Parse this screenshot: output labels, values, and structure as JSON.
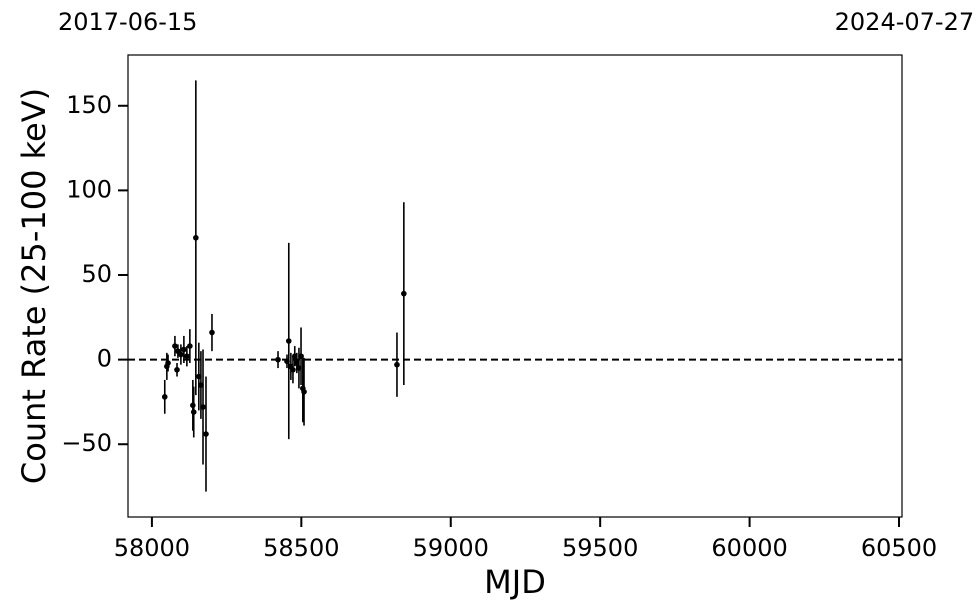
{
  "chart_data": {
    "type": "errorbar",
    "x_label": "MJD",
    "y_label": "Count Rate (25-100 keV)",
    "top_labels": [
      {
        "value": 57919,
        "label": "2017-06-15"
      },
      {
        "value": 60518,
        "label": "2024-07-27"
      }
    ],
    "xlim": [
      57920,
      60510
    ],
    "ylim": [
      -93,
      180
    ],
    "xticks": [
      58000,
      58500,
      59000,
      59500,
      60000,
      60500
    ],
    "yticks": [
      {
        "value": -50,
        "label": "−50"
      },
      0,
      50,
      100,
      150
    ],
    "hline": 0,
    "color": "#000000",
    "x": [
      58043,
      58050,
      58054,
      58077,
      58084,
      58087,
      58097,
      58107,
      58117,
      58127,
      58137,
      58140,
      58147,
      58157,
      58164,
      58171,
      58181,
      58201,
      58422,
      58452,
      58458,
      58465,
      58472,
      58478,
      58485,
      58492,
      58499,
      58505,
      58509,
      58820,
      58843
    ],
    "values": [
      -22,
      -4,
      -2,
      8,
      -6,
      5,
      3,
      6,
      2,
      8,
      -27,
      -31,
      72,
      -10,
      -15,
      -28,
      -44,
      16,
      0,
      -1,
      11,
      -4,
      -6,
      2,
      -2,
      -5,
      2,
      -17,
      -19,
      -3,
      39
    ],
    "errors": [
      10,
      8,
      5,
      6,
      4,
      4,
      6,
      8,
      6,
      10,
      15,
      15,
      93,
      20,
      20,
      34,
      34,
      11,
      5,
      4,
      58,
      8,
      8,
      6,
      6,
      12,
      17,
      20,
      20,
      19,
      54
    ]
  }
}
